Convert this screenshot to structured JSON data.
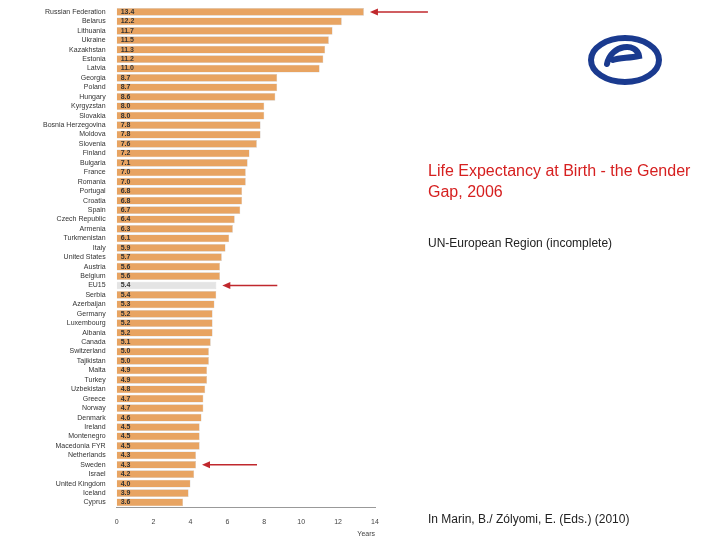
{
  "chart_data": {
    "type": "bar",
    "orientation": "horizontal",
    "title": "Life Expectancy at Birth - the Gender Gap, 2006",
    "subtitle": "UN-European Region (incomplete)",
    "annotation": "In Marin, B./ Zólyomi, E. (Eds.) (2010)",
    "xlabel": "Years",
    "categories": [
      "Russian Federation",
      "Belarus",
      "Lithuania",
      "Ukraine",
      "Kazakhstan",
      "Estonia",
      "Latvia",
      "Georgia",
      "Poland",
      "Hungary",
      "Kyrgyzstan",
      "Slovakia",
      "Bosnia Herzegovina",
      "Moldova",
      "Slovenia",
      "Finland",
      "Bulgaria",
      "France",
      "Romania",
      "Portugal",
      "Croatia",
      "Spain",
      "Czech Republic",
      "Armenia",
      "Turkmenistan",
      "Italy",
      "United States",
      "Austria",
      "Belgium",
      "EU15",
      "Serbia",
      "Azerbaijan",
      "Germany",
      "Luxembourg",
      "Albania",
      "Canada",
      "Switzerland",
      "Tajikistan",
      "Malta",
      "Turkey",
      "Uzbekistan",
      "Greece",
      "Norway",
      "Denmark",
      "Ireland",
      "Montenegro",
      "Macedonia FYR",
      "Netherlands",
      "Sweden",
      "Israel",
      "United Kingdom",
      "Iceland",
      "Cyprus"
    ],
    "values": [
      13.4,
      12.2,
      11.7,
      11.5,
      11.3,
      11.2,
      11.0,
      8.7,
      8.7,
      8.6,
      8.0,
      8.0,
      7.8,
      7.8,
      7.6,
      7.2,
      7.1,
      7.0,
      7.0,
      6.8,
      6.8,
      6.7,
      6.4,
      6.3,
      6.1,
      5.9,
      5.7,
      5.6,
      5.6,
      5.4,
      5.4,
      5.3,
      5.2,
      5.2,
      5.2,
      5.1,
      5.0,
      5.0,
      4.9,
      4.9,
      4.8,
      4.7,
      4.7,
      4.6,
      4.5,
      4.5,
      4.5,
      4.3,
      4.3,
      4.2,
      4.0,
      3.9,
      3.6
    ],
    "value_labels": [
      "13.4",
      "12.2",
      "11.7",
      "11.5",
      "11.3",
      "11.2",
      "11.0",
      "8.7",
      "8.7",
      "8.6",
      "8.0",
      "8.0",
      "7.8",
      "7.8",
      "7.6",
      "7.2",
      "7.1",
      "7.0",
      "7.0",
      "6.8",
      "6.8",
      "6.7",
      "6.4",
      "6.3",
      "6.1",
      "5.9",
      "5.7",
      "5.6",
      "5.6",
      "5.4",
      "5.4",
      "5.3",
      "5.2",
      "5.2",
      "5.2",
      "5.1",
      "5.0",
      "5.0",
      "4.9",
      "4.9",
      "4.8",
      "4.7",
      "4.7",
      "4.6",
      "4.5",
      "4.5",
      "4.5",
      "4.3",
      "4.3",
      "4.2",
      "4.0",
      "3.9",
      "3.6"
    ],
    "colors": [
      "#e8a462",
      "#e8a462",
      "#e8a462",
      "#e8a462",
      "#e8a462",
      "#e8a462",
      "#e8a462",
      "#e8a462",
      "#e8a462",
      "#e8a462",
      "#e8a462",
      "#e8a462",
      "#e8a462",
      "#e8a462",
      "#e8a462",
      "#e8a462",
      "#e8a462",
      "#e8a462",
      "#e8a462",
      "#e8a462",
      "#e8a462",
      "#e8a462",
      "#e8a462",
      "#e8a462",
      "#e8a462",
      "#e8a462",
      "#e8a462",
      "#e8a462",
      "#e8a462",
      "#e4e4e4",
      "#e8a462",
      "#e8a462",
      "#e8a462",
      "#e8a462",
      "#e8a462",
      "#e8a462",
      "#e8a462",
      "#e8a462",
      "#e8a462",
      "#e8a462",
      "#e8a462",
      "#e8a462",
      "#e8a462",
      "#e8a462",
      "#e8a462",
      "#e8a462",
      "#e8a462",
      "#e8a462",
      "#e8a462",
      "#e8a462",
      "#e8a462",
      "#e8a462",
      "#e8a462"
    ],
    "xlim": [
      0,
      14
    ],
    "xticks": [
      0,
      2,
      4,
      6,
      8,
      10,
      12,
      14
    ],
    "grid": false,
    "data_labels": true
  }
}
